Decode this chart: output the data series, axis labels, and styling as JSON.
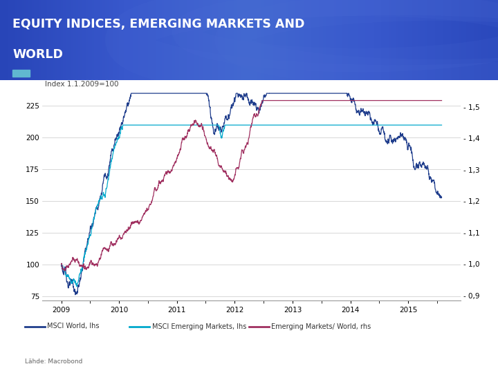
{
  "title_line1": "EQUITY INDICES, EMERGING MARKETS AND",
  "title_line2": "WORLD",
  "subtitle": "Index 1.1.2009=100",
  "legend_entries": [
    "MSCI World, lhs",
    "MSCI Emerging Markets, lhs",
    "Emerging Markets/ World, rhs"
  ],
  "source_text": "Lähde: Macrobond",
  "line_colors": [
    "#1f3d8c",
    "#00a8cc",
    "#a03060"
  ],
  "bg_color": "#ffffff",
  "plot_bg_color": "#ffffff",
  "grid_color": "#c8c8c8",
  "header_colors": [
    "#2a4cc0",
    "#4060c8"
  ],
  "ylim_left": [
    72,
    238
  ],
  "ylim_right": [
    0.885,
    1.555
  ],
  "yticks_left": [
    75,
    100,
    125,
    150,
    175,
    200,
    225
  ],
  "yticks_right": [
    0.9,
    1.0,
    1.1,
    1.2,
    1.3,
    1.4,
    1.5
  ],
  "ytick_right_labels": [
    "- 0,9",
    "- 1,0",
    "- 1,1",
    "- 1,2",
    "- 1,3",
    "- 1,4",
    "- 1,5"
  ]
}
